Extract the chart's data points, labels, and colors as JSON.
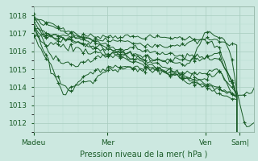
{
  "bg_color": "#cce8e0",
  "grid_color_major": "#a8ccbe",
  "grid_color_minor": "#b8dcd0",
  "line_color": "#1a5c28",
  "title": "Pression niveau de la mer( hPa )",
  "xlabel_ticks": [
    "Madeu",
    "Mer",
    "Ven",
    "Sam|"
  ],
  "xlabel_tick_positions": [
    0.0,
    0.335,
    0.78,
    0.935
  ],
  "ylim": [
    1011.5,
    1018.5
  ],
  "yticks": [
    1012,
    1013,
    1014,
    1015,
    1016,
    1017,
    1018
  ],
  "xlim": [
    0.0,
    1.0
  ],
  "bg_outer": "#cce8e0"
}
